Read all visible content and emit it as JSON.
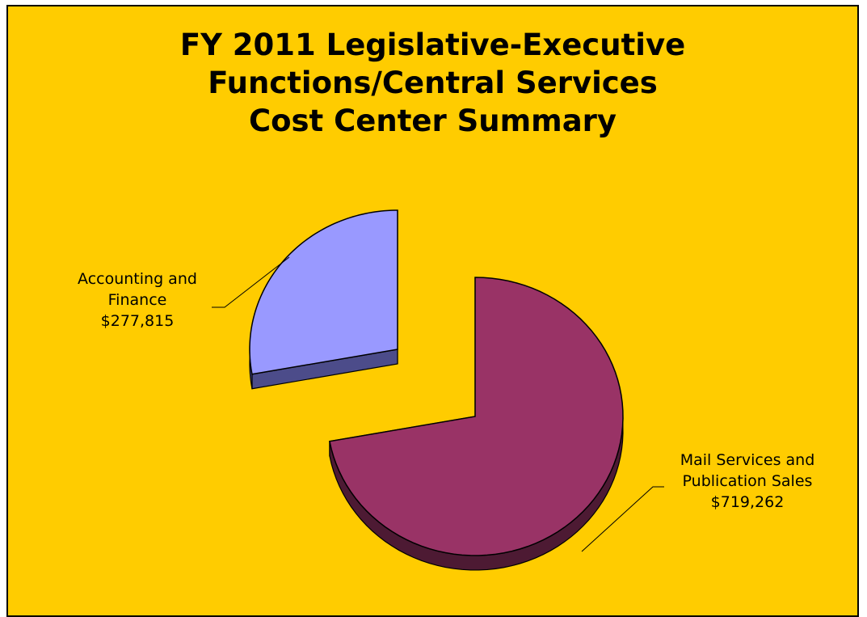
{
  "title_lines": [
    "FY 2011 Legislative-Executive",
    "Functions/Central Services",
    "Cost Center Summary"
  ],
  "colors": {
    "background": "#FFCC00",
    "accounting_top": "#9999FF",
    "accounting_side": "#4C4C8A",
    "mail_top": "#993366",
    "mail_side": "#4D1A33"
  },
  "labels": {
    "accounting": [
      "Accounting and",
      "Finance",
      "$277,815"
    ],
    "mail": [
      "Mail Services and",
      "Publication Sales",
      "$719,262"
    ]
  },
  "chart_data": {
    "type": "pie",
    "title": "FY 2011 Legislative-Executive Functions/Central Services Cost Center Summary",
    "style": "3d-exploded",
    "slices": [
      {
        "label": "Accounting and Finance",
        "value": 277815,
        "display": "$277,815"
      },
      {
        "label": "Mail Services and Publication Sales",
        "value": 719262,
        "display": "$719,262"
      }
    ]
  }
}
